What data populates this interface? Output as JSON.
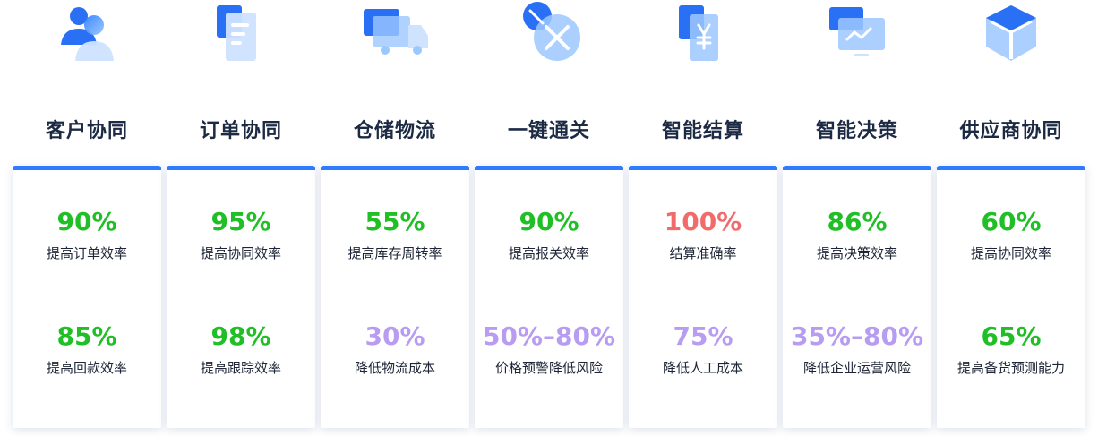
{
  "colors": {
    "accent_blue": "#2f7bff",
    "green": "#1fbf25",
    "red": "#f26b6b",
    "purple": "#b79cf2",
    "title": "#1c2a44"
  },
  "columns": [
    {
      "title": "客户协同",
      "icon": "users-icon",
      "stats": [
        {
          "value": "90%",
          "label": "提高订单效率",
          "color": "green"
        },
        {
          "value": "85%",
          "label": "提高回款效率",
          "color": "green"
        }
      ]
    },
    {
      "title": "订单协同",
      "icon": "document-icon",
      "stats": [
        {
          "value": "95%",
          "label": "提高协同效率",
          "color": "green"
        },
        {
          "value": "98%",
          "label": "提高跟踪效率",
          "color": "green"
        }
      ]
    },
    {
      "title": "仓储物流",
      "icon": "truck-icon",
      "stats": [
        {
          "value": "55%",
          "label": "提高库存周转率",
          "color": "green"
        },
        {
          "value": "30%",
          "label": "降低物流成本",
          "color": "purple"
        }
      ]
    },
    {
      "title": "一键通关",
      "icon": "customs-tools-icon",
      "stats": [
        {
          "value": "90%",
          "label": "提高报关效率",
          "color": "green"
        },
        {
          "value": "50%–80%",
          "label": "价格预警降低风险",
          "color": "purple"
        }
      ]
    },
    {
      "title": "智能结算",
      "icon": "yuan-invoice-icon",
      "stats": [
        {
          "value": "100%",
          "label": "结算准确率",
          "color": "red"
        },
        {
          "value": "75%",
          "label": "降低人工成本",
          "color": "purple"
        }
      ]
    },
    {
      "title": "智能决策",
      "icon": "chart-monitor-icon",
      "stats": [
        {
          "value": "86%",
          "label": "提高决策效率",
          "color": "green"
        },
        {
          "value": "35%–80%",
          "label": "降低企业运营风险",
          "color": "purple"
        }
      ]
    },
    {
      "title": "供应商协同",
      "icon": "cube-icon",
      "stats": [
        {
          "value": "60%",
          "label": "提高协同效率",
          "color": "green"
        },
        {
          "value": "65%",
          "label": "提高备货预测能力",
          "color": "green"
        }
      ]
    }
  ]
}
